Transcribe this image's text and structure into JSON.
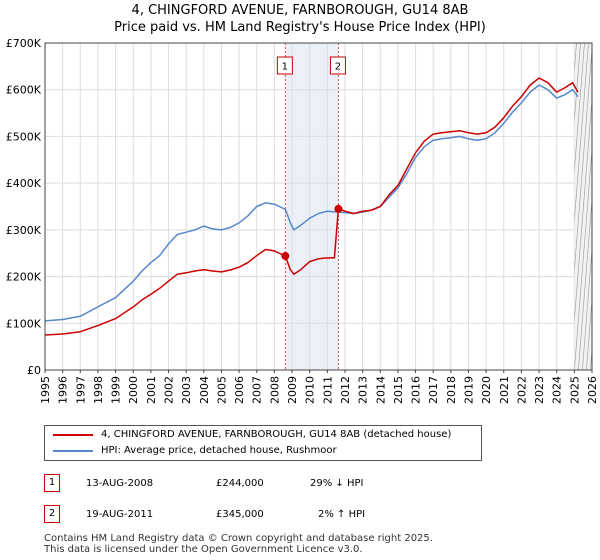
{
  "title_line1": "4, CHINGFORD AVENUE, FARNBOROUGH, GU14 8AB",
  "title_line2": "Price paid vs. HM Land Registry's House Price Index (HPI)",
  "colors": {
    "property": "#cc0000",
    "hpi": "#5588cc",
    "marker_line": "#cc0000",
    "future_hatch": "#999999"
  },
  "chart_data": {
    "type": "line",
    "title": "4, CHINGFORD AVENUE, FARNBOROUGH, GU14 8AB — Price paid vs. HM Land Registry's House Price Index (HPI)",
    "xlabel": "",
    "ylabel": "",
    "xlim": [
      1995,
      2026
    ],
    "ylim": [
      0,
      700000
    ],
    "grid": true,
    "x_ticks": [
      1995,
      1996,
      1997,
      1998,
      1999,
      2000,
      2001,
      2002,
      2003,
      2004,
      2005,
      2006,
      2007,
      2008,
      2009,
      2010,
      2011,
      2012,
      2013,
      2014,
      2015,
      2016,
      2017,
      2018,
      2019,
      2020,
      2021,
      2022,
      2023,
      2024,
      2025,
      2026
    ],
    "y_ticks": [
      {
        "value": 0,
        "label": "£0"
      },
      {
        "value": 100000,
        "label": "£100K"
      },
      {
        "value": 200000,
        "label": "£200K"
      },
      {
        "value": 300000,
        "label": "£300K"
      },
      {
        "value": 400000,
        "label": "£400K"
      },
      {
        "value": 500000,
        "label": "£500K"
      },
      {
        "value": 600000,
        "label": "£600K"
      },
      {
        "value": 700000,
        "label": "£700K"
      }
    ],
    "series": [
      {
        "name": "4, CHINGFORD AVENUE, FARNBOROUGH, GU14 8AB (detached house)",
        "color": "#cc0000",
        "points": [
          [
            1995.0,
            75000
          ],
          [
            1996.0,
            77000
          ],
          [
            1997.0,
            82000
          ],
          [
            1998.0,
            95000
          ],
          [
            1999.0,
            110000
          ],
          [
            2000.0,
            135000
          ],
          [
            2000.5,
            150000
          ],
          [
            2001.0,
            162000
          ],
          [
            2001.5,
            175000
          ],
          [
            2002.0,
            190000
          ],
          [
            2002.5,
            205000
          ],
          [
            2003.0,
            208000
          ],
          [
            2003.5,
            212000
          ],
          [
            2004.0,
            215000
          ],
          [
            2004.5,
            212000
          ],
          [
            2005.0,
            210000
          ],
          [
            2005.5,
            214000
          ],
          [
            2006.0,
            220000
          ],
          [
            2006.5,
            230000
          ],
          [
            2007.0,
            245000
          ],
          [
            2007.5,
            258000
          ],
          [
            2008.0,
            255000
          ],
          [
            2008.62,
            244000
          ],
          [
            2008.9,
            215000
          ],
          [
            2009.1,
            205000
          ],
          [
            2009.5,
            215000
          ],
          [
            2010.0,
            232000
          ],
          [
            2010.5,
            238000
          ],
          [
            2011.0,
            240000
          ],
          [
            2011.4,
            240000
          ],
          [
            2011.63,
            345000
          ],
          [
            2012.0,
            340000
          ],
          [
            2012.5,
            335000
          ],
          [
            2013.0,
            340000
          ],
          [
            2013.5,
            342000
          ],
          [
            2014.0,
            350000
          ],
          [
            2014.5,
            375000
          ],
          [
            2015.0,
            395000
          ],
          [
            2015.5,
            430000
          ],
          [
            2016.0,
            465000
          ],
          [
            2016.5,
            490000
          ],
          [
            2017.0,
            505000
          ],
          [
            2017.5,
            508000
          ],
          [
            2018.0,
            510000
          ],
          [
            2018.5,
            512000
          ],
          [
            2019.0,
            508000
          ],
          [
            2019.5,
            505000
          ],
          [
            2020.0,
            508000
          ],
          [
            2020.5,
            520000
          ],
          [
            2021.0,
            540000
          ],
          [
            2021.5,
            565000
          ],
          [
            2022.0,
            585000
          ],
          [
            2022.5,
            610000
          ],
          [
            2023.0,
            625000
          ],
          [
            2023.5,
            615000
          ],
          [
            2024.0,
            595000
          ],
          [
            2024.5,
            605000
          ],
          [
            2024.9,
            615000
          ],
          [
            2025.2,
            595000
          ]
        ]
      },
      {
        "name": "HPI: Average price, detached house, Rushmoor",
        "color": "#5588cc",
        "points": [
          [
            1995.0,
            105000
          ],
          [
            1996.0,
            108000
          ],
          [
            1997.0,
            115000
          ],
          [
            1998.0,
            135000
          ],
          [
            1999.0,
            155000
          ],
          [
            2000.0,
            190000
          ],
          [
            2000.5,
            212000
          ],
          [
            2001.0,
            230000
          ],
          [
            2001.5,
            245000
          ],
          [
            2002.0,
            270000
          ],
          [
            2002.5,
            290000
          ],
          [
            2003.0,
            295000
          ],
          [
            2003.5,
            300000
          ],
          [
            2004.0,
            308000
          ],
          [
            2004.5,
            302000
          ],
          [
            2005.0,
            300000
          ],
          [
            2005.5,
            305000
          ],
          [
            2006.0,
            315000
          ],
          [
            2006.5,
            330000
          ],
          [
            2007.0,
            350000
          ],
          [
            2007.5,
            358000
          ],
          [
            2008.0,
            355000
          ],
          [
            2008.62,
            344000
          ],
          [
            2008.9,
            315000
          ],
          [
            2009.1,
            300000
          ],
          [
            2009.5,
            310000
          ],
          [
            2010.0,
            325000
          ],
          [
            2010.5,
            335000
          ],
          [
            2011.0,
            340000
          ],
          [
            2011.63,
            338000
          ],
          [
            2012.0,
            337000
          ],
          [
            2012.5,
            335000
          ],
          [
            2013.0,
            338000
          ],
          [
            2013.5,
            342000
          ],
          [
            2014.0,
            350000
          ],
          [
            2014.5,
            370000
          ],
          [
            2015.0,
            390000
          ],
          [
            2015.5,
            420000
          ],
          [
            2016.0,
            455000
          ],
          [
            2016.5,
            478000
          ],
          [
            2017.0,
            492000
          ],
          [
            2017.5,
            495000
          ],
          [
            2018.0,
            497000
          ],
          [
            2018.5,
            500000
          ],
          [
            2019.0,
            495000
          ],
          [
            2019.5,
            492000
          ],
          [
            2020.0,
            495000
          ],
          [
            2020.5,
            508000
          ],
          [
            2021.0,
            528000
          ],
          [
            2021.5,
            552000
          ],
          [
            2022.0,
            572000
          ],
          [
            2022.5,
            595000
          ],
          [
            2023.0,
            610000
          ],
          [
            2023.5,
            600000
          ],
          [
            2024.0,
            582000
          ],
          [
            2024.5,
            590000
          ],
          [
            2024.9,
            600000
          ],
          [
            2025.2,
            585000
          ]
        ]
      }
    ],
    "sales": [
      {
        "label": "1",
        "x": 2008.62,
        "price": 244000
      },
      {
        "label": "2",
        "x": 2011.63,
        "price": 345000
      }
    ],
    "shaded_range": [
      2008.62,
      2011.63
    ],
    "future_from": 2025.0
  },
  "legend": {
    "property_label": "4, CHINGFORD AVENUE, FARNBOROUGH, GU14 8AB (detached house)",
    "hpi_label": "HPI: Average price, detached house, Rushmoor"
  },
  "transactions": [
    {
      "num": "1",
      "date": "13-AUG-2008",
      "price": "£244,000",
      "hpi": "29% ↓ HPI"
    },
    {
      "num": "2",
      "date": "19-AUG-2011",
      "price": "£345,000",
      "hpi": "2% ↑ HPI"
    }
  ],
  "footer_line1": "Contains HM Land Registry data © Crown copyright and database right 2025.",
  "footer_line2": "This data is licensed under the Open Government Licence v3.0."
}
